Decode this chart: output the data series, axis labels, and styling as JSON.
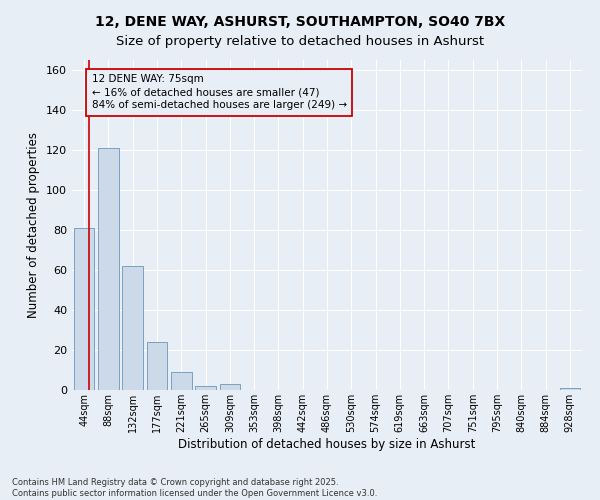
{
  "title1": "12, DENE WAY, ASHURST, SOUTHAMPTON, SO40 7BX",
  "title2": "Size of property relative to detached houses in Ashurst",
  "xlabel": "Distribution of detached houses by size in Ashurst",
  "ylabel": "Number of detached properties",
  "categories": [
    "44sqm",
    "88sqm",
    "132sqm",
    "177sqm",
    "221sqm",
    "265sqm",
    "309sqm",
    "353sqm",
    "398sqm",
    "442sqm",
    "486sqm",
    "530sqm",
    "574sqm",
    "619sqm",
    "663sqm",
    "707sqm",
    "751sqm",
    "795sqm",
    "840sqm",
    "884sqm",
    "928sqm"
  ],
  "values": [
    81,
    121,
    62,
    24,
    9,
    2,
    3,
    0,
    0,
    0,
    0,
    0,
    0,
    0,
    0,
    0,
    0,
    0,
    0,
    0,
    1
  ],
  "bar_color": "#ccd9e8",
  "bar_edge_color": "#7aa0be",
  "bar_edge_width": 0.7,
  "ylim": [
    0,
    165
  ],
  "yticks": [
    0,
    20,
    40,
    60,
    80,
    100,
    120,
    140,
    160
  ],
  "property_line_color": "#cc0000",
  "annotation_text": "12 DENE WAY: 75sqm\n← 16% of detached houses are smaller (47)\n84% of semi-detached houses are larger (249) →",
  "annotation_box_color": "#cc0000",
  "background_color": "#e8eef5",
  "footer_text": "Contains HM Land Registry data © Crown copyright and database right 2025.\nContains public sector information licensed under the Open Government Licence v3.0.",
  "grid_color": "#ffffff",
  "title1_fontsize": 10,
  "title2_fontsize": 9.5,
  "annotation_fontsize": 7.5,
  "tick_fontsize": 7,
  "axis_label_fontsize": 8.5,
  "footer_fontsize": 6
}
